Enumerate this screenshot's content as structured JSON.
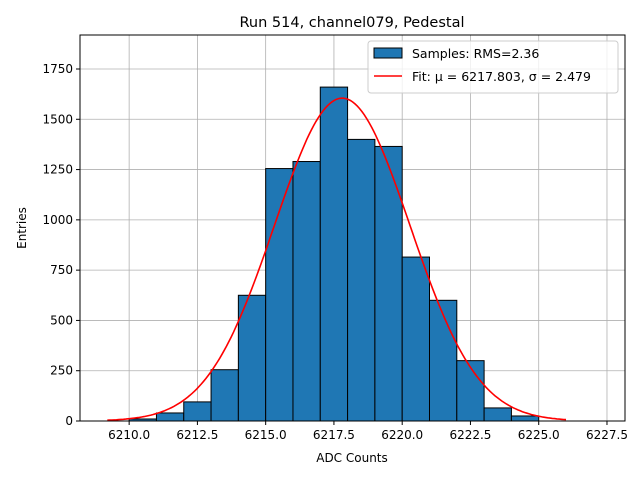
{
  "chart_data": {
    "type": "bar",
    "title": "Run 514, channel079, Pedestal",
    "xlabel": "ADC Counts",
    "ylabel": "Entries",
    "xlim": [
      6208.2,
      6228.16
    ],
    "ylim": [
      0,
      1919
    ],
    "xticks": [
      6210.0,
      6212.5,
      6215.0,
      6217.5,
      6220.0,
      6222.5,
      6225.0,
      6227.5
    ],
    "xtick_labels": [
      "6210.0",
      "6212.5",
      "6215.0",
      "6217.5",
      "6220.0",
      "6222.5",
      "6225.0",
      "6227.5"
    ],
    "yticks": [
      0,
      250,
      500,
      750,
      1000,
      1250,
      1500,
      1750
    ],
    "ytick_labels": [
      "0",
      "250",
      "500",
      "750",
      "1000",
      "1250",
      "1500",
      "1750"
    ],
    "grid": true,
    "bin_edges": [
      6210,
      6211,
      6212,
      6213,
      6214,
      6215,
      6216,
      6217,
      6218,
      6219,
      6220,
      6221,
      6222,
      6223,
      6224,
      6225
    ],
    "values": [
      10,
      40,
      95,
      255,
      625,
      1255,
      1290,
      1660,
      1400,
      1365,
      815,
      600,
      300,
      65,
      25
    ],
    "bar_color": "#1f77b4",
    "fit": {
      "mu": 6217.803,
      "sigma": 2.479,
      "amplitude": 1605,
      "x_range": [
        6209.2,
        6226.0
      ],
      "color": "#ff0000"
    },
    "legend": {
      "position": "top-right",
      "entries": [
        "Samples: RMS=2.36",
        "Fit: μ = 6217.803, σ = 2.479"
      ]
    }
  }
}
